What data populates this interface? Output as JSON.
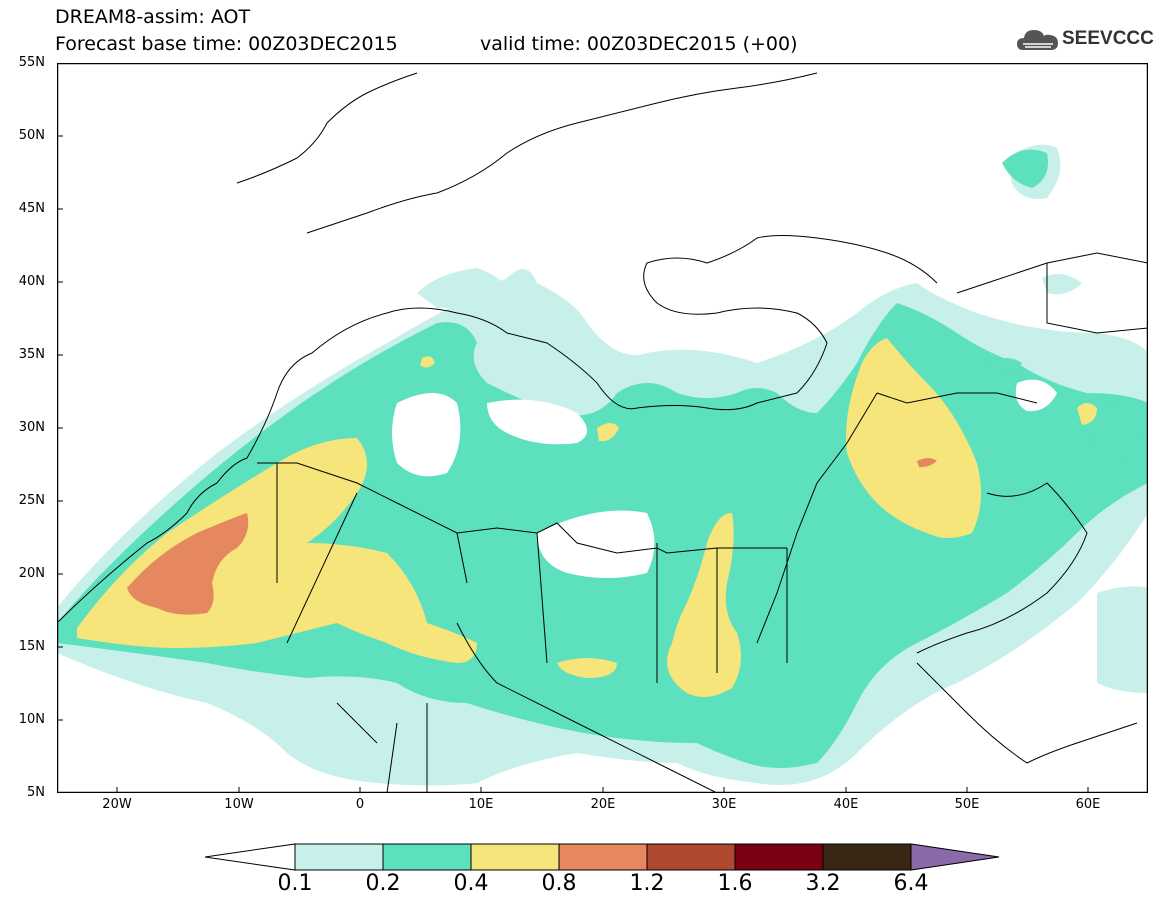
{
  "header": {
    "title": "DREAM8-assim: AOT",
    "base_time": "Forecast base time: 00Z03DEC2015",
    "valid_time": "valid time: 00Z03DEC2015 (+00)",
    "logo_text": "SEEVCCC"
  },
  "axes": {
    "lat_labels": [
      "55N",
      "50N",
      "45N",
      "40N",
      "35N",
      "30N",
      "25N",
      "20N",
      "15N",
      "10N",
      "5N"
    ],
    "lon_labels": [
      "20W",
      "10W",
      "0",
      "10E",
      "20E",
      "30E",
      "40E",
      "50E",
      "60E"
    ]
  },
  "legend": {
    "labels": [
      "0.1",
      "0.2",
      "0.4",
      "0.8",
      "1.2",
      "1.6",
      "3.2",
      "6.4"
    ],
    "colors": [
      "#ffffff",
      "#c8f0ea",
      "#5ce0bd",
      "#f5e57a",
      "#e5885f",
      "#b04830",
      "#7a0016",
      "#3a2614",
      "#8a6aa8"
    ]
  },
  "colors": {
    "low": "#c8f0ea",
    "mid": "#5ce0bd",
    "high": "#f5e57a",
    "very_high": "#e5885f"
  }
}
